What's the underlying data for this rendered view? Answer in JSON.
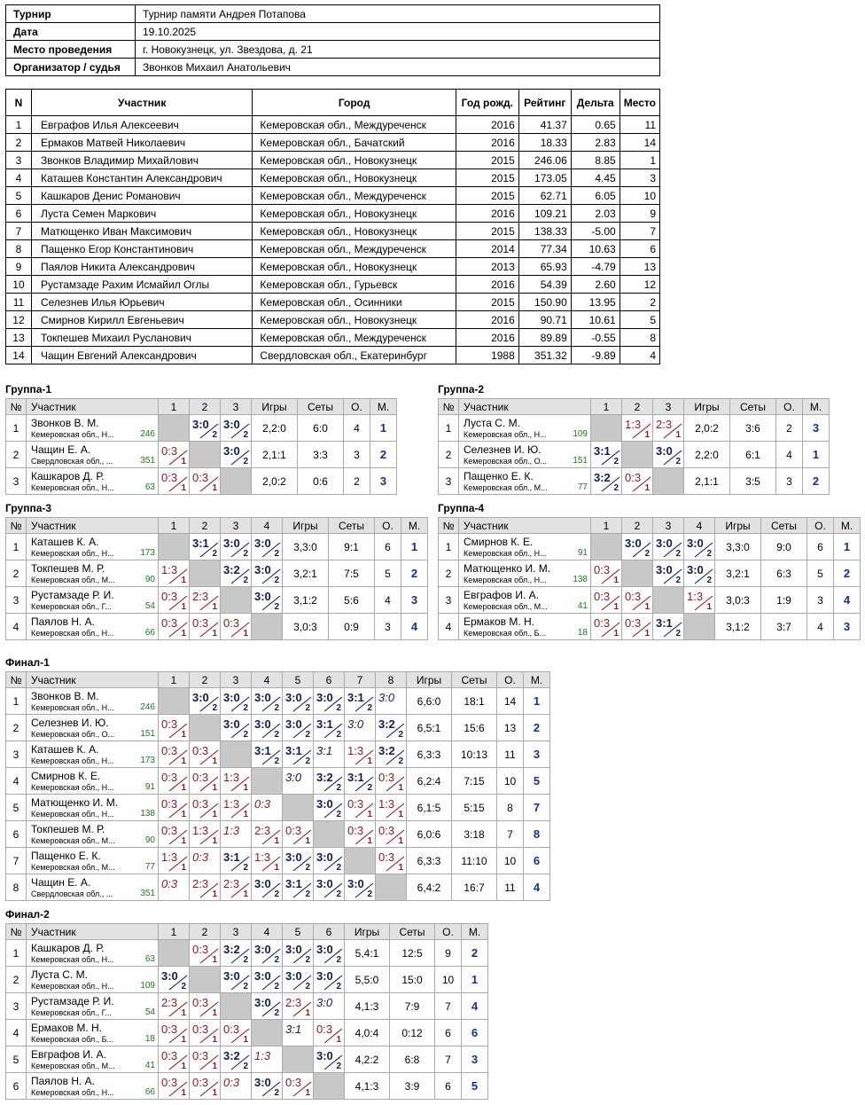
{
  "tournament": {
    "label_name": "Турнир",
    "name": "Турнир памяти Андрея Потапова",
    "label_date": "Дата",
    "date": "19.10.2025",
    "label_place": "Место проведения",
    "place": "г. Новокузнецк, ул. Звездова, д. 21",
    "label_org": "Организатор / судья",
    "org": "Звонков Михаил Анатольевич"
  },
  "players_header": {
    "n": "N",
    "name": "Участник",
    "city": "Город",
    "year": "Год рожд.",
    "rating": "Рейтинг",
    "delta": "Дельта",
    "place": "Место"
  },
  "players": [
    {
      "n": "1",
      "name": "Евграфов Илья Алексеевич",
      "city": "Кемеровская обл., Междуреченск",
      "year": "2016",
      "rating": "41.37",
      "delta": "0.65",
      "place": "11"
    },
    {
      "n": "2",
      "name": "Ермаков Матвей Николаевич",
      "city": "Кемеровская обл., Бачатский",
      "year": "2016",
      "rating": "18.33",
      "delta": "2.83",
      "place": "14"
    },
    {
      "n": "3",
      "name": "Звонков Владимир Михайлович",
      "city": "Кемеровская обл., Новокузнецк",
      "year": "2015",
      "rating": "246.06",
      "delta": "8.85",
      "place": "1"
    },
    {
      "n": "4",
      "name": "Каташев Константин Александрович",
      "city": "Кемеровская обл., Новокузнецк",
      "year": "2015",
      "rating": "173.05",
      "delta": "4.45",
      "place": "3"
    },
    {
      "n": "5",
      "name": "Кашкаров Денис Романович",
      "city": "Кемеровская обл., Междуреченск",
      "year": "2015",
      "rating": "62.71",
      "delta": "6.05",
      "place": "10"
    },
    {
      "n": "6",
      "name": "Луста Семен Маркович",
      "city": "Кемеровская обл., Новокузнецк",
      "year": "2016",
      "rating": "109.21",
      "delta": "2.03",
      "place": "9"
    },
    {
      "n": "7",
      "name": "Матющенко Иван Максимович",
      "city": "Кемеровская обл., Новокузнецк",
      "year": "2015",
      "rating": "138.33",
      "delta": "-5.00",
      "place": "7"
    },
    {
      "n": "8",
      "name": "Пащенко Егор Константинович",
      "city": "Кемеровская обл., Междуреченск",
      "year": "2014",
      "rating": "77.34",
      "delta": "10.63",
      "place": "6"
    },
    {
      "n": "9",
      "name": "Паялов Никита Александрович",
      "city": "Кемеровская обл., Новокузнецк",
      "year": "2013",
      "rating": "65.93",
      "delta": "-4.79",
      "place": "13"
    },
    {
      "n": "10",
      "name": "Рустамзаде Рахим Исмайил Оглы",
      "city": "Кемеровская обл., Гурьевск",
      "year": "2016",
      "rating": "54.39",
      "delta": "2.60",
      "place": "12"
    },
    {
      "n": "11",
      "name": "Селезнев Илья Юрьевич",
      "city": "Кемеровская обл., Осинники",
      "year": "2015",
      "rating": "150.90",
      "delta": "13.95",
      "place": "2"
    },
    {
      "n": "12",
      "name": "Смирнов Кирилл Евгеньевич",
      "city": "Кемеровская обл., Новокузнецк",
      "year": "2016",
      "rating": "90.71",
      "delta": "10.61",
      "place": "5"
    },
    {
      "n": "13",
      "name": "Токпешев Михаил Русланович",
      "city": "Кемеровская обл., Междуреченск",
      "year": "2016",
      "rating": "89.89",
      "delta": "-0.55",
      "place": "8"
    },
    {
      "n": "14",
      "name": "Чащин Евгений Александрович",
      "city": "Свердловская обл., Екатеринбург",
      "year": "1988",
      "rating": "351.32",
      "delta": "-9.89",
      "place": "4"
    }
  ],
  "group_header": {
    "n": "№",
    "player": "Участник",
    "games": "Игры",
    "sets": "Сеты",
    "points": "О.",
    "place": "М."
  },
  "groups": [
    {
      "title": "Группа-1",
      "rows": [
        {
          "n": "1",
          "name": "Звонков В. М.",
          "club": "Кемеровская обл., Н...",
          "rating": "246",
          "cells": [
            "X",
            "W:3:0:2",
            "W:3:0:2"
          ],
          "games": "2,2:0",
          "sets": "6:0",
          "points": "4",
          "place": "1"
        },
        {
          "n": "2",
          "name": "Чащин Е. А.",
          "club": "Свердловская обл., ...",
          "rating": "351",
          "cells": [
            "L:0:3:1",
            "X",
            "W:3:0:2"
          ],
          "games": "2,1:1",
          "sets": "3:3",
          "points": "3",
          "place": "2"
        },
        {
          "n": "3",
          "name": "Кашкаров Д. Р.",
          "club": "Кемеровская обл., Н...",
          "rating": "63",
          "cells": [
            "L:0:3:1",
            "L:0:3:1",
            "X"
          ],
          "games": "2,0:2",
          "sets": "0:6",
          "points": "2",
          "place": "3"
        }
      ]
    },
    {
      "title": "Группа-2",
      "rows": [
        {
          "n": "1",
          "name": "Луста С. М.",
          "club": "Кемеровская обл., Н...",
          "rating": "109",
          "cells": [
            "X",
            "L:1:3:1",
            "L:2:3:1"
          ],
          "games": "2,0:2",
          "sets": "3:6",
          "points": "2",
          "place": "3"
        },
        {
          "n": "2",
          "name": "Селезнев И. Ю.",
          "club": "Кемеровская обл., О...",
          "rating": "151",
          "cells": [
            "W:3:1:2",
            "X",
            "W:3:0:2"
          ],
          "games": "2,2:0",
          "sets": "6:1",
          "points": "4",
          "place": "1"
        },
        {
          "n": "3",
          "name": "Пащенко Е. К.",
          "club": "Кемеровская обл., М...",
          "rating": "77",
          "cells": [
            "W:3:2:2",
            "L:0:3:1",
            "X"
          ],
          "games": "2,1:1",
          "sets": "3:5",
          "points": "3",
          "place": "2"
        }
      ]
    },
    {
      "title": "Группа-3",
      "rows": [
        {
          "n": "1",
          "name": "Каташев К. А.",
          "club": "Кемеровская обл., Н...",
          "rating": "173",
          "cells": [
            "X",
            "W:3:1:2",
            "W:3:0:2",
            "W:3:0:2"
          ],
          "games": "3,3:0",
          "sets": "9:1",
          "points": "6",
          "place": "1"
        },
        {
          "n": "2",
          "name": "Токпешев М. Р.",
          "club": "Кемеровская обл., М...",
          "rating": "90",
          "cells": [
            "L:1:3:1",
            "X",
            "W:3:2:2",
            "W:3:0:2"
          ],
          "games": "3,2:1",
          "sets": "7:5",
          "points": "5",
          "place": "2"
        },
        {
          "n": "3",
          "name": "Рустамзаде Р. И.",
          "club": "Кемеровская обл., Г...",
          "rating": "54",
          "cells": [
            "L:0:3:1",
            "L:2:3:1",
            "X",
            "W:3:0:2"
          ],
          "games": "3,1:2",
          "sets": "5:6",
          "points": "4",
          "place": "3"
        },
        {
          "n": "4",
          "name": "Паялов Н. А.",
          "club": "Кемеровская обл., Н...",
          "rating": "66",
          "cells": [
            "L:0:3:1",
            "L:0:3:1",
            "L:0:3:1",
            "X"
          ],
          "games": "3,0:3",
          "sets": "0:9",
          "points": "3",
          "place": "4"
        }
      ]
    },
    {
      "title": "Группа-4",
      "rows": [
        {
          "n": "1",
          "name": "Смирнов К. Е.",
          "club": "Кемеровская обл., Н...",
          "rating": "91",
          "cells": [
            "X",
            "W:3:0:2",
            "W:3:0:2",
            "W:3:0:2"
          ],
          "games": "3,3:0",
          "sets": "9:0",
          "points": "6",
          "place": "1"
        },
        {
          "n": "2",
          "name": "Матющенко И. М.",
          "club": "Кемеровская обл., Н...",
          "rating": "138",
          "cells": [
            "L:0:3:1",
            "X",
            "W:3:0:2",
            "W:3:0:2"
          ],
          "games": "3,2:1",
          "sets": "6:3",
          "points": "5",
          "place": "2"
        },
        {
          "n": "3",
          "name": "Евграфов И. А.",
          "club": "Кемеровская обл., М...",
          "rating": "41",
          "cells": [
            "L:0:3:1",
            "L:0:3:1",
            "X",
            "L:1:3:1"
          ],
          "games": "3,0:3",
          "sets": "1:9",
          "points": "3",
          "place": "4"
        },
        {
          "n": "4",
          "name": "Ермаков М. Н.",
          "club": "Кемеровская обл., Б...",
          "rating": "18",
          "cells": [
            "L:0:3:1",
            "L:0:3:1",
            "W:3:1:2",
            "X"
          ],
          "games": "3,1:2",
          "sets": "3:7",
          "points": "4",
          "place": "3"
        }
      ]
    },
    {
      "title": "Финал-1",
      "rows": [
        {
          "n": "1",
          "name": "Звонков В. М.",
          "club": "Кемеровская обл., Н...",
          "rating": "246",
          "cells": [
            "X",
            "W:3:0:2",
            "W:3:0:2",
            "W:3:0:2",
            "W:3:0:2",
            "W:3:0:2",
            "W:3:1:2",
            "WI:3:0:"
          ],
          "games": "6,6:0",
          "sets": "18:1",
          "points": "14",
          "place": "1"
        },
        {
          "n": "2",
          "name": "Селезнев И. Ю.",
          "club": "Кемеровская обл., О...",
          "rating": "151",
          "cells": [
            "L:0:3:1",
            "X",
            "W:3:0:2",
            "W:3:0:2",
            "W:3:0:2",
            "W:3:1:2",
            "WI:3:0:",
            "W:3:2:2"
          ],
          "games": "6,5:1",
          "sets": "15:6",
          "points": "13",
          "place": "2"
        },
        {
          "n": "3",
          "name": "Каташев К. А.",
          "club": "Кемеровская обл., Н...",
          "rating": "173",
          "cells": [
            "L:0:3:1",
            "L:0:3:1",
            "X",
            "W:3:1:2",
            "W:3:1:2",
            "WI:3:1:",
            "L:1:3:1",
            "W:3:2:2"
          ],
          "games": "6,3:3",
          "sets": "10:13",
          "points": "11",
          "place": "3"
        },
        {
          "n": "4",
          "name": "Смирнов К. Е.",
          "club": "Кемеровская обл., Н...",
          "rating": "91",
          "cells": [
            "L:0:3:1",
            "L:0:3:1",
            "L:1:3:1",
            "X",
            "WI:3:0:",
            "W:3:2:2",
            "W:3:1:2",
            "L:0:3:1"
          ],
          "games": "6,2:4",
          "sets": "7:15",
          "points": "10",
          "place": "5"
        },
        {
          "n": "5",
          "name": "Матющенко И. М.",
          "club": "Кемеровская обл., Н...",
          "rating": "138",
          "cells": [
            "L:0:3:1",
            "L:0:3:1",
            "L:1:3:1",
            "LI:0:3:",
            "X",
            "W:3:0:2",
            "L:0:3:1",
            "L:1:3:1"
          ],
          "games": "6,1:5",
          "sets": "5:15",
          "points": "8",
          "place": "7"
        },
        {
          "n": "6",
          "name": "Токпешев М. Р.",
          "club": "Кемеровская обл., М...",
          "rating": "90",
          "cells": [
            "L:0:3:1",
            "L:1:3:1",
            "LI:1:3:",
            "L:2:3:1",
            "L:0:3:1",
            "X",
            "L:0:3:1",
            "L:0:3:1"
          ],
          "games": "6,0:6",
          "sets": "3:18",
          "points": "7",
          "place": "8"
        },
        {
          "n": "7",
          "name": "Пащенко Е. К.",
          "club": "Кемеровская обл., М...",
          "rating": "77",
          "cells": [
            "L:1:3:1",
            "LI:0:3:",
            "W:3:1:2",
            "L:1:3:1",
            "W:3:0:2",
            "W:3:0:2",
            "X",
            "L:0:3:1"
          ],
          "games": "6,3:3",
          "sets": "11:10",
          "points": "10",
          "place": "6"
        },
        {
          "n": "8",
          "name": "Чащин Е. А.",
          "club": "Свердловская обл., ...",
          "rating": "351",
          "cells": [
            "LI:0:3:",
            "L:2:3:1",
            "L:2:3:1",
            "W:3:0:2",
            "W:3:1:2",
            "W:3:0:2",
            "W:3:0:2",
            "X"
          ],
          "games": "6,4:2",
          "sets": "16:7",
          "points": "11",
          "place": "4"
        }
      ]
    },
    {
      "title": "Финал-2",
      "rows": [
        {
          "n": "1",
          "name": "Кашкаров Д. Р.",
          "club": "Кемеровская обл., Н...",
          "rating": "63",
          "cells": [
            "X",
            "L:0:3:1",
            "W:3:2:2",
            "W:3:0:2",
            "W:3:0:2",
            "W:3:0:2"
          ],
          "games": "5,4:1",
          "sets": "12:5",
          "points": "9",
          "place": "2"
        },
        {
          "n": "2",
          "name": "Луста С. М.",
          "club": "Кемеровская обл., Н...",
          "rating": "109",
          "cells": [
            "W:3:0:2",
            "X",
            "W:3:0:2",
            "W:3:0:2",
            "W:3:0:2",
            "W:3:0:2"
          ],
          "games": "5,5:0",
          "sets": "15:0",
          "points": "10",
          "place": "1"
        },
        {
          "n": "3",
          "name": "Рустамзаде Р. И.",
          "club": "Кемеровская обл., Г...",
          "rating": "54",
          "cells": [
            "L:2:3:1",
            "L:0:3:1",
            "X",
            "W:3:0:2",
            "L:2:3:1",
            "WI:3:0:"
          ],
          "games": "4,1:3",
          "sets": "7:9",
          "points": "7",
          "place": "4"
        },
        {
          "n": "4",
          "name": "Ермаков М. Н.",
          "club": "Кемеровская обл., Б...",
          "rating": "18",
          "cells": [
            "L:0:3:1",
            "L:0:3:1",
            "L:0:3:1",
            "X",
            "WI:3:1:",
            "L:0:3:1"
          ],
          "games": "4,0:4",
          "sets": "0:12",
          "points": "6",
          "place": "6"
        },
        {
          "n": "5",
          "name": "Евграфов И. А.",
          "club": "Кемеровская обл., М...",
          "rating": "41",
          "cells": [
            "L:0:3:1",
            "L:0:3:1",
            "W:3:2:2",
            "LI:1:3:",
            "X",
            "W:3:0:2"
          ],
          "games": "4,2:2",
          "sets": "6:8",
          "points": "7",
          "place": "3"
        },
        {
          "n": "6",
          "name": "Паялов Н. А.",
          "club": "Кемеровская обл., Н...",
          "rating": "66",
          "cells": [
            "L:0:3:1",
            "L:0:3:1",
            "LI:0:3:",
            "W:3:0:2",
            "L:0:3:1",
            "X"
          ],
          "games": "4,1:3",
          "sets": "3:9",
          "points": "6",
          "place": "5"
        }
      ]
    }
  ]
}
